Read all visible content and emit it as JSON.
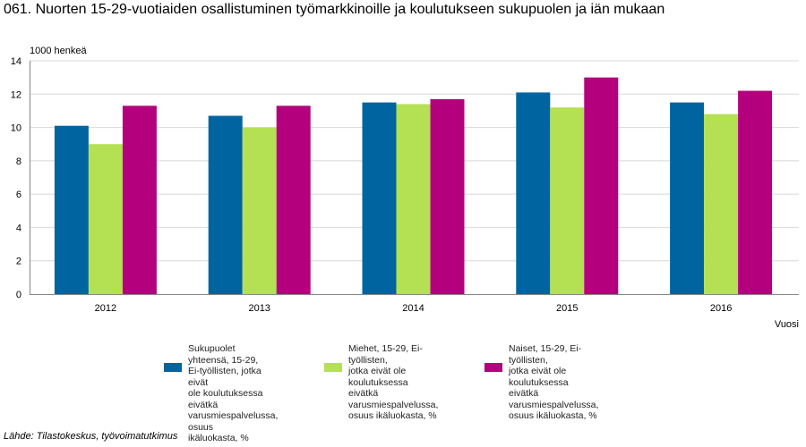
{
  "colors": {
    "series": [
      "#0064a0",
      "#b4e153",
      "#b4007d"
    ],
    "gridline": "#d8d8d8",
    "axis": "#888888"
  },
  "chart_data": {
    "type": "bar",
    "title": "061. Nuorten 15-29-vuotiaiden osallistuminen työmarkkinoille ja koulutukseen sukupuolen ja iän mukaan",
    "ylabel": "1000 henkeä",
    "xlabel": "Vuosi",
    "categories": [
      "2012",
      "2013",
      "2014",
      "2015",
      "2016"
    ],
    "ylim": [
      0,
      14
    ],
    "yticks": [
      0,
      2,
      4,
      6,
      8,
      10,
      12,
      14
    ],
    "grid": true,
    "legend_position": "bottom",
    "series": [
      {
        "name": "Sukupuolet yhteensä, 15-29, Ei-työllisten, jotka eivät ole koulutuksessa eivätkä varusmiespalvelussa, osuus ikäluokasta, %",
        "legend_lines": [
          "Sukupuolet yhteensä, 15-29,",
          "Ei-työllisten, jotka eivät",
          "ole koulutuksessa eivätkä",
          "varusmiespalvelussa, osuus",
          "ikäluokasta, %"
        ],
        "values": [
          10.1,
          10.7,
          11.5,
          12.1,
          11.5
        ]
      },
      {
        "name": "Miehet, 15-29, Ei-työllisten, jotka eivät ole koulutuksessa eivätkä varusmiespalvelussa, osuus ikäluokasta, %",
        "legend_lines": [
          "Miehet, 15-29, Ei-työllisten,",
          "jotka eivät ole koulutuksessa",
          "eivätkä varusmiespalvelussa,",
          "osuus ikäluokasta, %"
        ],
        "values": [
          9.0,
          10.0,
          11.4,
          11.2,
          10.8
        ]
      },
      {
        "name": "Naiset, 15-29, Ei-työllisten, jotka eivät ole koulutuksessa eivätkä varusmiespalvelussa, osuus ikäluokasta, %",
        "legend_lines": [
          "Naiset, 15-29, Ei-työllisten,",
          "jotka eivät ole koulutuksessa",
          "eivätkä varusmiespalvelussa,",
          "osuus ikäluokasta, %"
        ],
        "values": [
          11.3,
          11.3,
          11.7,
          13.0,
          12.2
        ]
      }
    ]
  },
  "source": "Lähde: Tilastokeskus, työvoimatutkimus"
}
